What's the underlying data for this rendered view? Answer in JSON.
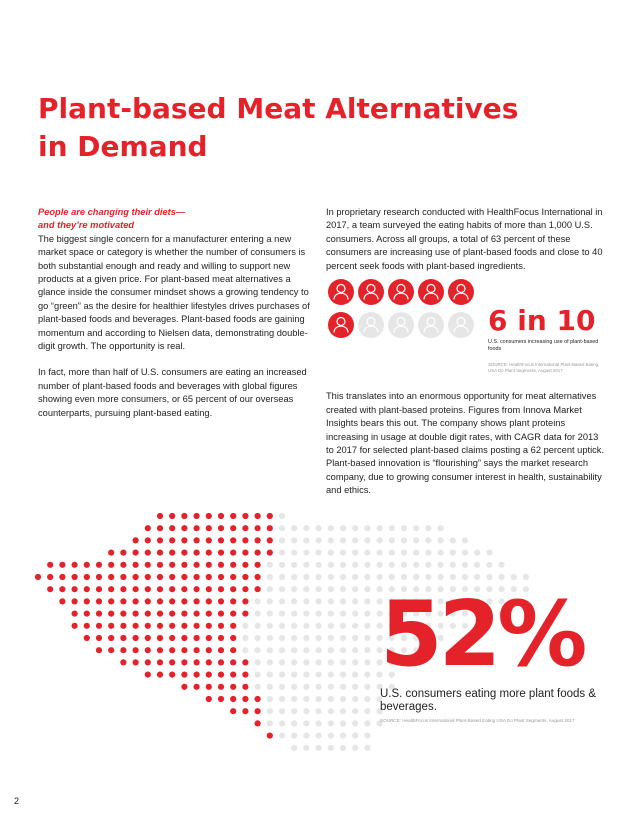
{
  "title_line1": "Plant-based Meat Alternatives",
  "title_line2": "in Demand",
  "left": {
    "subhead_line1": "People are changing their diets—",
    "subhead_line2": "and they’re motivated",
    "para1": "The biggest single concern for a manufacturer entering a new market space or category is whether the number of consumers is both substantial enough and ready and willing to support new products at a given price. For plant-based meat alternatives a glance inside the consumer mindset shows a growing tendency to go “green” as the desire for healthier lifestyles drives purchases of plant-based foods and beverages. Plant-based foods are gaining momentum and according to Nielsen data, demonstrating double-digit growth. The opportunity is real.",
    "para2": "In fact, more than half of U.S. consumers are eating an increased number of plant-based foods and beverages with global figures showing even more consumers, or 65 percent of our overseas counterparts, pursuing plant-based eating."
  },
  "right": {
    "para1": "In proprietary research conducted with HealthFocus International in 2017, a team surveyed the eating habits of more than 1,000 U.S. consumers. Across all groups, a total of 63 percent of these consumers are increasing use of plant-based foods and close to 40 percent seek foods with plant-based ingredients.",
    "para2": "This translates into an enormous opportunity for meat alternatives created with plant-based proteins. Figures from Innova Market Insights bears this out. The company shows plant proteins increasing in usage at double digit rates, with CAGR data for 2013 to 2017 for selected plant-based claims posting a 62 percent uptick. Plant-based innovation is “flourishing” says the market research company, due to growing consumer interest in health, sustainability and ethics."
  },
  "stat_6in10": {
    "value": "6 in 10",
    "label": "U.S. consumers increasing use of plant-based foods",
    "source": "SOURCE: HealthFocus International Plant-Based Eating USA Do Plant Segments, August 2017",
    "filled": 6,
    "total": 10,
    "filled_color": "#e4222a",
    "empty_color": "#e6e6e6",
    "icon": "person-icon"
  },
  "stat_52": {
    "value": "52%",
    "label": "U.S. consumers eating more plant foods & beverages.",
    "source": "SOURCE: HealthFocus International Plant-Based Eating USA Do Plant Segments, August 2017"
  },
  "page_number": "2",
  "colors": {
    "accent": "#e4222a",
    "muted_dot": "#e6e6e6"
  }
}
